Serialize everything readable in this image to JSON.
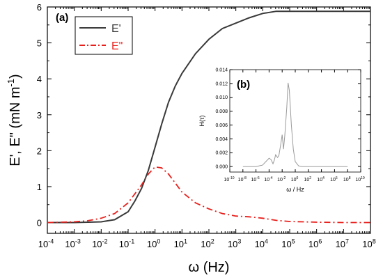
{
  "chart_data": [
    {
      "panel": "(a)",
      "type": "line",
      "xscale": "log",
      "xlim_exp": [
        -4,
        8
      ],
      "ylim": [
        -0.3,
        6
      ],
      "xlabel_sym": "ω",
      "xlabel_unit": "(Hz)",
      "ylabel": "E', E\"  (mN m",
      "ylabel_sup": "-1",
      "ylabel_close": ")",
      "xticks_exp": [
        -4,
        -3,
        -2,
        -1,
        0,
        1,
        2,
        3,
        4,
        5,
        6,
        7,
        8
      ],
      "yticks": [
        0,
        1,
        2,
        3,
        4,
        5,
        6
      ],
      "legend_position": "top-left",
      "series": [
        {
          "name": "E'",
          "color": "#3a3a3a",
          "style": "solid",
          "points": [
            [
              -4,
              0.0
            ],
            [
              -3,
              0.0
            ],
            [
              -2.5,
              0.01
            ],
            [
              -2,
              0.02
            ],
            [
              -1.5,
              0.08
            ],
            [
              -1,
              0.3
            ],
            [
              -0.75,
              0.6
            ],
            [
              -0.5,
              0.95
            ],
            [
              -0.25,
              1.45
            ],
            [
              0,
              2.1
            ],
            [
              0.25,
              2.75
            ],
            [
              0.5,
              3.35
            ],
            [
              0.75,
              3.8
            ],
            [
              1,
              4.15
            ],
            [
              1.5,
              4.7
            ],
            [
              2,
              5.1
            ],
            [
              2.5,
              5.4
            ],
            [
              3,
              5.55
            ],
            [
              3.5,
              5.7
            ],
            [
              4,
              5.82
            ],
            [
              4.5,
              5.88
            ],
            [
              5,
              5.88
            ],
            [
              6,
              5.88
            ],
            [
              7,
              5.88
            ],
            [
              8,
              5.88
            ]
          ]
        },
        {
          "name": "E\"",
          "color": "#e8201c",
          "style": "dash-dot",
          "points": [
            [
              -4,
              0.0
            ],
            [
              -3,
              0.02
            ],
            [
              -2.5,
              0.05
            ],
            [
              -2,
              0.12
            ],
            [
              -1.5,
              0.25
            ],
            [
              -1,
              0.55
            ],
            [
              -0.5,
              1.05
            ],
            [
              -0.25,
              1.35
            ],
            [
              0,
              1.55
            ],
            [
              0.25,
              1.52
            ],
            [
              0.5,
              1.35
            ],
            [
              0.75,
              1.1
            ],
            [
              1,
              0.85
            ],
            [
              1.5,
              0.55
            ],
            [
              2,
              0.38
            ],
            [
              2.5,
              0.25
            ],
            [
              3,
              0.18
            ],
            [
              3.5,
              0.16
            ],
            [
              4,
              0.12
            ],
            [
              4.5,
              0.06
            ],
            [
              5,
              0.03
            ],
            [
              6,
              0.01
            ],
            [
              7,
              0.0
            ],
            [
              8,
              0.0
            ]
          ]
        }
      ]
    },
    {
      "panel": "(b)",
      "type": "line",
      "xscale": "log",
      "xlim_exp": [
        -10,
        10
      ],
      "ylim": [
        -0.0008,
        0.014
      ],
      "xlabel_sym": "ω",
      "xlabel_unit": " / Hz",
      "ylabel": "H(τ)",
      "xticks_exp": [
        -10,
        -8,
        -6,
        -4,
        -2,
        0,
        2,
        4,
        6,
        8,
        10
      ],
      "yticks": [
        "0.000",
        "0.002",
        "0.004",
        "0.006",
        "0.008",
        "0.010",
        "0.012",
        "0.014"
      ],
      "series": [
        {
          "name": "",
          "color": "#9a9a9a",
          "style": "solid",
          "points": [
            [
              -8,
              0.0
            ],
            [
              -6,
              0.0
            ],
            [
              -5,
              0.0002
            ],
            [
              -4.5,
              0.0007
            ],
            [
              -4,
              0.0012
            ],
            [
              -3.7,
              0.001
            ],
            [
              -3.4,
              0.0004
            ],
            [
              -3.2,
              0.0009
            ],
            [
              -3,
              0.0017
            ],
            [
              -2.7,
              0.0013
            ],
            [
              -2.5,
              0.0016
            ],
            [
              -2.2,
              0.0033
            ],
            [
              -2,
              0.0046
            ],
            [
              -1.8,
              0.0025
            ],
            [
              -1.6,
              0.0045
            ],
            [
              -1.3,
              0.0085
            ],
            [
              -1.1,
              0.0121
            ],
            [
              -0.9,
              0.011
            ],
            [
              -0.6,
              0.006
            ],
            [
              -0.3,
              0.0025
            ],
            [
              0,
              0.0007
            ],
            [
              0.5,
              0.0001
            ],
            [
              1,
              0.0
            ],
            [
              4,
              0.0
            ],
            [
              8,
              0.0
            ]
          ]
        }
      ]
    }
  ]
}
